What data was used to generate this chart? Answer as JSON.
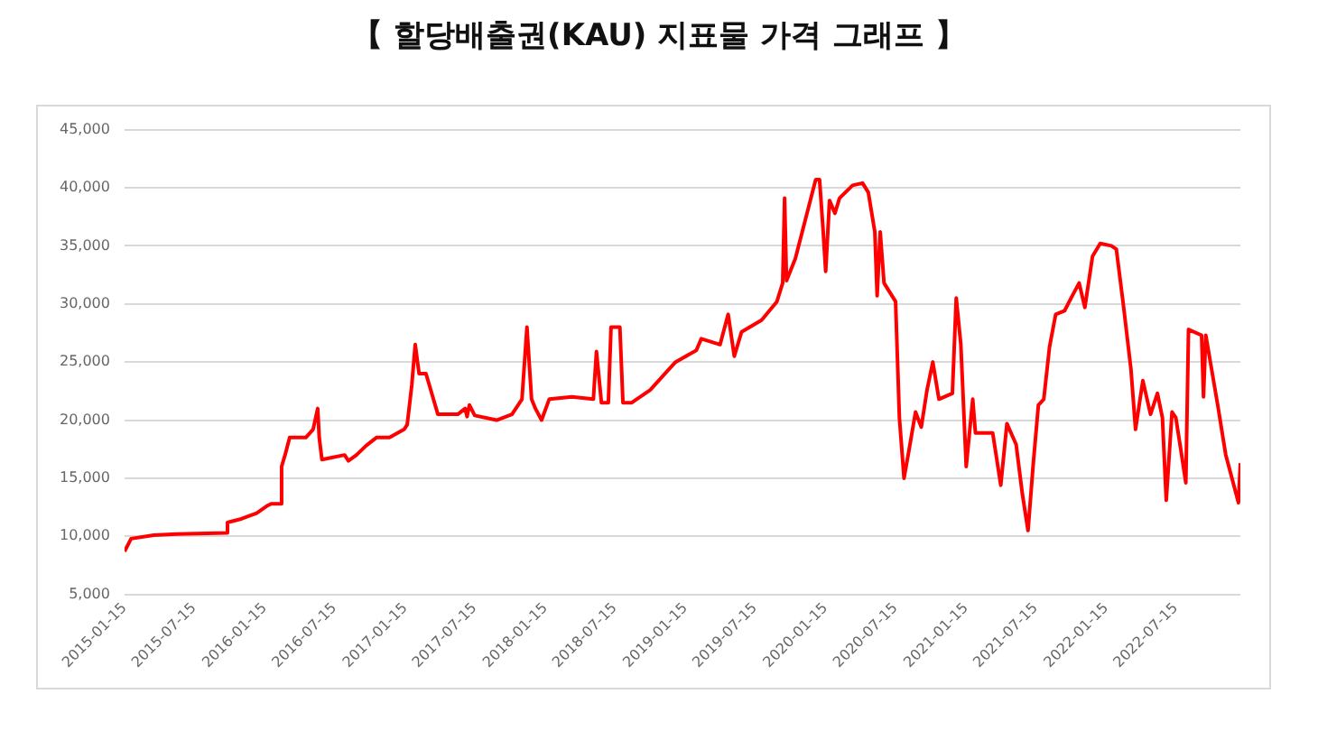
{
  "chart_data": {
    "type": "line",
    "title": "【 할당배출권(KAU) 지표물 가격 그래프 】",
    "x": [
      "2015-01-15",
      "2015-02-01",
      "2015-04-01",
      "2015-06-01",
      "2015-10-08",
      "2015-10-10",
      "2015-11-15",
      "2015-12-25",
      "2016-01-20",
      "2016-02-01",
      "2016-02-25",
      "2016-02-28",
      "2016-03-08",
      "2016-03-20",
      "2016-05-01",
      "2016-05-20",
      "2016-06-01",
      "2016-06-05",
      "2016-06-12",
      "2016-08-10",
      "2016-08-20",
      "2016-09-10",
      "2016-10-05",
      "2016-11-01",
      "2016-12-05",
      "2017-01-12",
      "2017-01-20",
      "2017-01-25",
      "2017-02-01",
      "2017-02-10",
      "2017-02-20",
      "2017-03-10",
      "2017-04-10",
      "2017-06-01",
      "2017-06-20",
      "2017-06-25",
      "2017-07-01",
      "2017-07-15",
      "2017-09-10",
      "2017-10-20",
      "2017-11-15",
      "2017-11-28",
      "2017-12-10",
      "2017-12-20",
      "2018-01-05",
      "2018-01-25",
      "2018-03-25",
      "2018-05-20",
      "2018-05-28",
      "2018-06-10",
      "2018-06-28",
      "2018-07-05",
      "2018-07-28",
      "2018-08-05",
      "2018-08-28",
      "2018-10-15",
      "2018-11-28",
      "2018-12-20",
      "2019-02-12",
      "2019-02-25",
      "2019-04-15",
      "2019-05-06",
      "2019-05-22",
      "2019-06-10",
      "2019-08-01",
      "2019-09-10",
      "2019-09-25",
      "2019-09-30",
      "2019-10-05",
      "2019-10-28",
      "2019-11-25",
      "2019-12-20",
      "2019-12-30",
      "2020-01-08",
      "2020-01-15",
      "2020-01-25",
      "2020-02-08",
      "2020-02-20",
      "2020-03-25",
      "2020-04-20",
      "2020-05-05",
      "2020-05-22",
      "2020-05-28",
      "2020-06-05",
      "2020-06-15",
      "2020-07-15",
      "2020-07-25",
      "2020-08-06",
      "2020-08-20",
      "2020-09-05",
      "2020-09-20",
      "2020-10-05",
      "2020-10-20",
      "2020-11-05",
      "2020-12-10",
      "2020-12-20",
      "2021-01-01",
      "2021-01-15",
      "2021-02-01",
      "2021-02-08",
      "2021-03-25",
      "2021-04-15",
      "2021-05-01",
      "2021-05-25",
      "2021-06-10",
      "2021-06-25",
      "2021-07-08",
      "2021-07-22",
      "2021-08-05",
      "2021-08-20",
      "2021-09-05",
      "2021-09-28",
      "2021-10-15",
      "2021-11-05",
      "2021-11-20",
      "2021-12-10",
      "2021-12-30",
      "2022-01-28",
      "2022-02-10",
      "2022-02-28",
      "2022-03-20",
      "2022-04-01",
      "2022-04-20",
      "2022-05-10",
      "2022-05-28",
      "2022-06-10",
      "2022-06-20",
      "2022-07-05",
      "2022-07-15",
      "2022-07-30",
      "2022-08-10",
      "2022-08-17",
      "2022-09-20",
      "2022-09-25",
      "2022-10-01",
      "2022-11-01",
      "2022-11-22",
      "2022-12-25",
      "2022-12-30"
    ],
    "series": [
      {
        "color": "#ff0000",
        "values": [
          8700,
          9800,
          10100,
          10200,
          10300,
          11200,
          11500,
          12000,
          12600,
          12800,
          12800,
          16000,
          17000,
          18500,
          18500,
          19200,
          21000,
          18500,
          16600,
          17000,
          16500,
          17000,
          17800,
          18500,
          18500,
          19200,
          19600,
          21000,
          23000,
          26500,
          24000,
          24000,
          20500,
          20500,
          21000,
          20300,
          21300,
          20400,
          20000,
          20500,
          21800,
          28000,
          21800,
          21000,
          20000,
          21800,
          22000,
          21800,
          25900,
          21500,
          21500,
          28000,
          28000,
          21500,
          21500,
          22600,
          24200,
          25000,
          26000,
          27000,
          26500,
          29100,
          25500,
          27600,
          28600,
          30200,
          31800,
          39100,
          32000,
          33900,
          37500,
          40700,
          40700,
          36500,
          32800,
          38900,
          37800,
          39100,
          40200,
          40400,
          39600,
          36200,
          30700,
          36200,
          31800,
          30200,
          20200,
          15000,
          17600,
          20700,
          19400,
          22600,
          25000,
          21800,
          22300,
          30500,
          26500,
          16000,
          21800,
          18900,
          18900,
          14400,
          19700,
          17900,
          13700,
          10500,
          16000,
          21300,
          21800,
          26300,
          29100,
          29400,
          30500,
          31800,
          29700,
          34100,
          35200,
          35000,
          34700,
          30000,
          24400,
          19200,
          23400,
          20500,
          22300,
          20200,
          13100,
          20700,
          20200,
          17000,
          14600,
          27800,
          27300,
          22000,
          27300,
          21300,
          17000,
          12900,
          16300
        ]
      }
    ],
    "xlim": [
      "2015-01-15",
      "2022-12-30"
    ],
    "xticks": [
      "2015-01-15",
      "2015-07-15",
      "2016-01-15",
      "2016-07-15",
      "2017-01-15",
      "2017-07-15",
      "2018-01-15",
      "2018-07-15",
      "2019-01-15",
      "2019-07-15",
      "2020-01-15",
      "2020-07-15",
      "2021-01-15",
      "2021-07-15",
      "2022-01-15",
      "2022-07-15"
    ],
    "ylim": [
      5000,
      45000
    ],
    "yticks": [
      {
        "value": 5000,
        "label": "5,000"
      },
      {
        "value": 10000,
        "label": "10,000"
      },
      {
        "value": 15000,
        "label": "15,000"
      },
      {
        "value": 20000,
        "label": "20,000"
      },
      {
        "value": 25000,
        "label": "25,000"
      },
      {
        "value": 30000,
        "label": "30,000"
      },
      {
        "value": 35000,
        "label": "35,000"
      },
      {
        "value": 40000,
        "label": "40,000"
      },
      {
        "value": 45000,
        "label": "45,000"
      }
    ],
    "grid": "y",
    "legend": false,
    "marker": "none",
    "line_style": "solid"
  }
}
